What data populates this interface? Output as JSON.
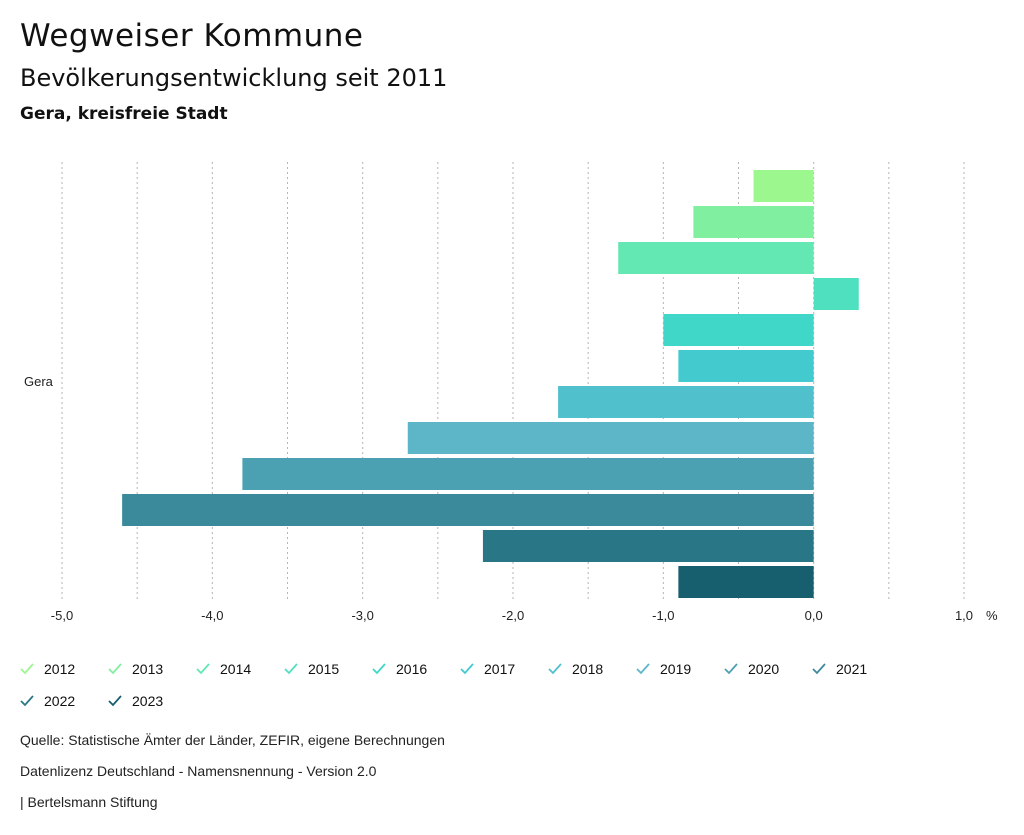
{
  "header": {
    "title": "Wegweiser Kommune",
    "subtitle": "Bevölkerungsentwicklung seit 2011",
    "region": "Gera, kreisfreie Stadt"
  },
  "chart_data": {
    "type": "bar",
    "orientation": "horizontal",
    "category": "Gera",
    "unit": "%",
    "xlim": [
      -5,
      1
    ],
    "x_ticks": [
      "-5,0",
      "-4,0",
      "-3,0",
      "-2,0",
      "-1,0",
      "0,0",
      "1,0"
    ],
    "x_tick_values": [
      -5,
      -4,
      -3,
      -2,
      -1,
      0,
      1
    ],
    "grid": true,
    "series": [
      {
        "name": "2012",
        "value": -0.4,
        "color": "#9bf78e"
      },
      {
        "name": "2013",
        "value": -0.8,
        "color": "#80f0a0"
      },
      {
        "name": "2014",
        "value": -1.3,
        "color": "#63e8b3"
      },
      {
        "name": "2015",
        "value": 0.3,
        "color": "#4fe0c0"
      },
      {
        "name": "2016",
        "value": -1.0,
        "color": "#40d6c8"
      },
      {
        "name": "2017",
        "value": -0.9,
        "color": "#42cace"
      },
      {
        "name": "2018",
        "value": -1.7,
        "color": "#4fc0cc"
      },
      {
        "name": "2019",
        "value": -2.7,
        "color": "#5db5c8"
      },
      {
        "name": "2020",
        "value": -3.8,
        "color": "#4ba0b2"
      },
      {
        "name": "2021",
        "value": -4.6,
        "color": "#3b8a9c"
      },
      {
        "name": "2022",
        "value": -2.2,
        "color": "#287686"
      },
      {
        "name": "2023",
        "value": -0.9,
        "color": "#175e6e"
      }
    ]
  },
  "footer": {
    "source": "Quelle: Statistische Ämter der Länder, ZEFIR, eigene Berechnungen",
    "license": "Datenlizenz Deutschland - Namensnennung - Version 2.0",
    "publisher": "| Bertelsmann Stiftung"
  }
}
